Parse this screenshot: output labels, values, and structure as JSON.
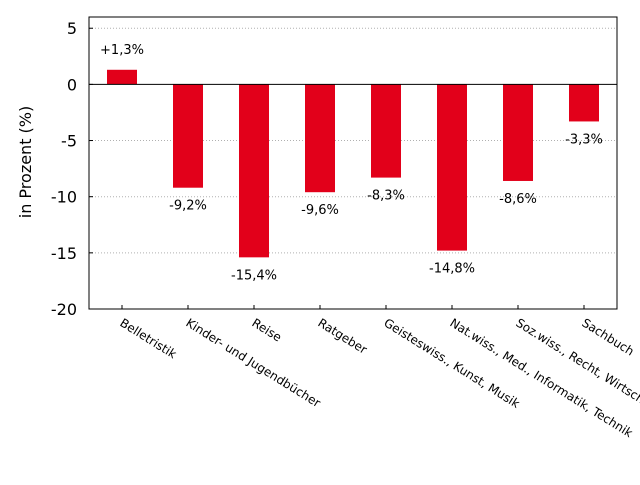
{
  "chart_data": {
    "type": "bar",
    "categories": [
      "Belletristik",
      "Kinder- und Jugendbücher",
      "Reise",
      "Ratgeber",
      "Geisteswiss., Kunst, Musik",
      "Nat.wiss., Med., Informatik, Technik",
      "Soz.wiss., Recht, Wirtsch.",
      "Sachbuch"
    ],
    "values": [
      1.3,
      -9.2,
      -15.4,
      -9.6,
      -8.3,
      -14.8,
      -8.6,
      -3.3
    ],
    "value_labels": [
      "+1,3%",
      "-9,2%",
      "-15,4%",
      "-9,6%",
      "-8,3%",
      "-14,8%",
      "-8,6%",
      "-3,3%"
    ],
    "title": "",
    "xlabel": "",
    "ylabel": "in Prozent (%)",
    "ylim": [
      -20,
      6
    ],
    "yticks": [
      5,
      0,
      -5,
      -10,
      -15,
      -20
    ],
    "ytick_labels": [
      "5",
      "0",
      "-5",
      "-10",
      "-15",
      "-20"
    ],
    "grid": "horizontal dotted",
    "bar_color": "#e2001a"
  }
}
